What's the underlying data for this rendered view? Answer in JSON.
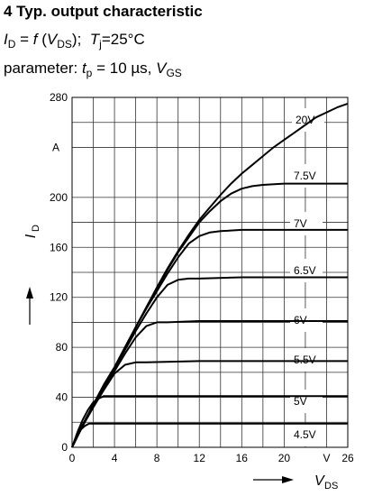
{
  "header": {
    "title": "4 Typ. output characteristic",
    "func_I": "I",
    "func_I_sub": "D",
    "func_eq": " = ",
    "func_f": "f",
    "func_arg_open": " (",
    "func_V": "V",
    "func_V_sub": "DS",
    "func_arg_close": ");",
    "temp_T": "T",
    "temp_T_sub": "j",
    "temp_val": "=25°C",
    "param_label": "parameter: ",
    "param_t": "t",
    "param_t_sub": "p",
    "param_t_val": " = 10 µs, ",
    "param_V": "V",
    "param_V_sub": "GS"
  },
  "chart_data": {
    "type": "line",
    "title": "4 Typ. output characteristic",
    "xlabel": "V",
    "xlabel_sub": "DS",
    "xunit": "V",
    "ylabel": "I",
    "ylabel_sub": "D",
    "yunit": "A",
    "xlim": [
      0,
      26
    ],
    "ylim": [
      0,
      280
    ],
    "xticks": [
      0,
      4,
      8,
      12,
      16,
      20,
      26
    ],
    "yticks": [
      0,
      40,
      80,
      120,
      160,
      200,
      280
    ],
    "grid": true,
    "series": [
      {
        "name": "20V",
        "points": [
          [
            0,
            0
          ],
          [
            1,
            18
          ],
          [
            2,
            34
          ],
          [
            3,
            50
          ],
          [
            4,
            64
          ],
          [
            5,
            80
          ],
          [
            6,
            96
          ],
          [
            7,
            112
          ],
          [
            8,
            128
          ],
          [
            9,
            143
          ],
          [
            10,
            157
          ],
          [
            11,
            170
          ],
          [
            12,
            182
          ],
          [
            13,
            192
          ],
          [
            14,
            202
          ],
          [
            15,
            211
          ],
          [
            16,
            219
          ],
          [
            17,
            226
          ],
          [
            18,
            233
          ],
          [
            19,
            240
          ],
          [
            20,
            246
          ],
          [
            21,
            252
          ],
          [
            22,
            258
          ],
          [
            23,
            264
          ],
          [
            24,
            268
          ],
          [
            25,
            272
          ],
          [
            26,
            275
          ]
        ]
      },
      {
        "name": "7.5V",
        "points": [
          [
            0,
            0
          ],
          [
            1,
            18
          ],
          [
            2,
            34
          ],
          [
            3,
            50
          ],
          [
            4,
            64
          ],
          [
            5,
            80
          ],
          [
            6,
            96
          ],
          [
            7,
            112
          ],
          [
            8,
            127
          ],
          [
            9,
            142
          ],
          [
            10,
            156
          ],
          [
            11,
            168
          ],
          [
            12,
            180
          ],
          [
            13,
            189
          ],
          [
            14,
            197
          ],
          [
            15,
            203
          ],
          [
            16,
            207
          ],
          [
            17,
            209
          ],
          [
            18,
            210
          ],
          [
            20,
            211
          ],
          [
            26,
            211
          ]
        ]
      },
      {
        "name": "7V",
        "points": [
          [
            0,
            0
          ],
          [
            1,
            18
          ],
          [
            2,
            34
          ],
          [
            3,
            50
          ],
          [
            4,
            64
          ],
          [
            5,
            80
          ],
          [
            6,
            96
          ],
          [
            7,
            111
          ],
          [
            8,
            125
          ],
          [
            9,
            139
          ],
          [
            10,
            152
          ],
          [
            11,
            163
          ],
          [
            12,
            169
          ],
          [
            13,
            172
          ],
          [
            14,
            173
          ],
          [
            16,
            174
          ],
          [
            26,
            174
          ]
        ]
      },
      {
        "name": "6.5V",
        "points": [
          [
            0,
            0
          ],
          [
            1,
            18
          ],
          [
            2,
            34
          ],
          [
            3,
            49
          ],
          [
            4,
            63
          ],
          [
            5,
            78
          ],
          [
            6,
            93
          ],
          [
            7,
            107
          ],
          [
            8,
            120
          ],
          [
            9,
            130
          ],
          [
            10,
            134
          ],
          [
            11,
            135
          ],
          [
            12,
            135
          ],
          [
            16,
            136
          ],
          [
            26,
            136
          ]
        ]
      },
      {
        "name": "6V",
        "points": [
          [
            0,
            0
          ],
          [
            1,
            18
          ],
          [
            2,
            33
          ],
          [
            3,
            48
          ],
          [
            4,
            61
          ],
          [
            5,
            75
          ],
          [
            6,
            88
          ],
          [
            7,
            97
          ],
          [
            8,
            100
          ],
          [
            9,
            100
          ],
          [
            12,
            101
          ],
          [
            26,
            101
          ]
        ]
      },
      {
        "name": "5.5V",
        "points": [
          [
            0,
            0
          ],
          [
            1,
            17
          ],
          [
            2,
            32
          ],
          [
            3,
            46
          ],
          [
            4,
            59
          ],
          [
            5,
            66
          ],
          [
            6,
            68
          ],
          [
            7,
            68
          ],
          [
            12,
            69
          ],
          [
            26,
            69
          ]
        ]
      },
      {
        "name": "5V",
        "points": [
          [
            0,
            0
          ],
          [
            0.5,
            12
          ],
          [
            1,
            22
          ],
          [
            1.5,
            30
          ],
          [
            2,
            36
          ],
          [
            2.5,
            39
          ],
          [
            3,
            41
          ],
          [
            4,
            41
          ],
          [
            26,
            41
          ]
        ]
      },
      {
        "name": "4.5V",
        "points": [
          [
            0,
            0
          ],
          [
            0.4,
            8
          ],
          [
            0.8,
            14
          ],
          [
            1.2,
            17
          ],
          [
            1.6,
            19
          ],
          [
            2,
            19
          ],
          [
            26,
            19
          ]
        ]
      }
    ]
  }
}
